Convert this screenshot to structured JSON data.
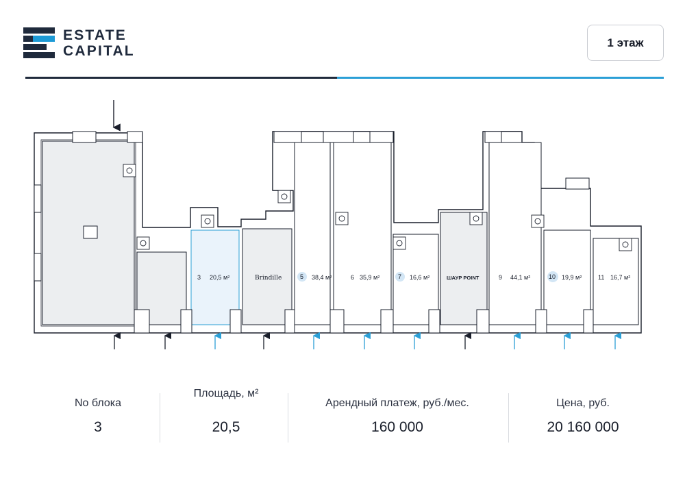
{
  "brand": {
    "line1": "ESTATE",
    "line2": "CAPITAL"
  },
  "floor": {
    "label": "1 этаж"
  },
  "colors": {
    "navy": "#1f2a3c",
    "accent": "#1c9ad6",
    "selected_fill": "#eaf3fb",
    "unit_fill": "#eceef0"
  },
  "units": [
    {
      "num": "3",
      "area": "20,5 м²",
      "selected": true
    },
    {
      "name": "Brindille"
    },
    {
      "num": "5",
      "area": "38,4 м²",
      "badge": true
    },
    {
      "num": "6",
      "area": "35,9 м²"
    },
    {
      "num": "7",
      "area": "16,6 м²",
      "badge": true
    },
    {
      "name": "ШАУР POINT"
    },
    {
      "num": "9",
      "area": "44,1 м²"
    },
    {
      "num": "10",
      "area": "19,9 м²",
      "badge": true
    },
    {
      "num": "11",
      "area": "16,7 м²"
    }
  ],
  "summary": {
    "block_label": "No блока",
    "block_value": "3",
    "area_label": "Площадь, м²",
    "area_value": "20,5",
    "rent_label": "Арендный платеж, руб./мес.",
    "rent_value": "160 000",
    "price_label": "Цена, руб.",
    "price_value": "20 160 000"
  }
}
